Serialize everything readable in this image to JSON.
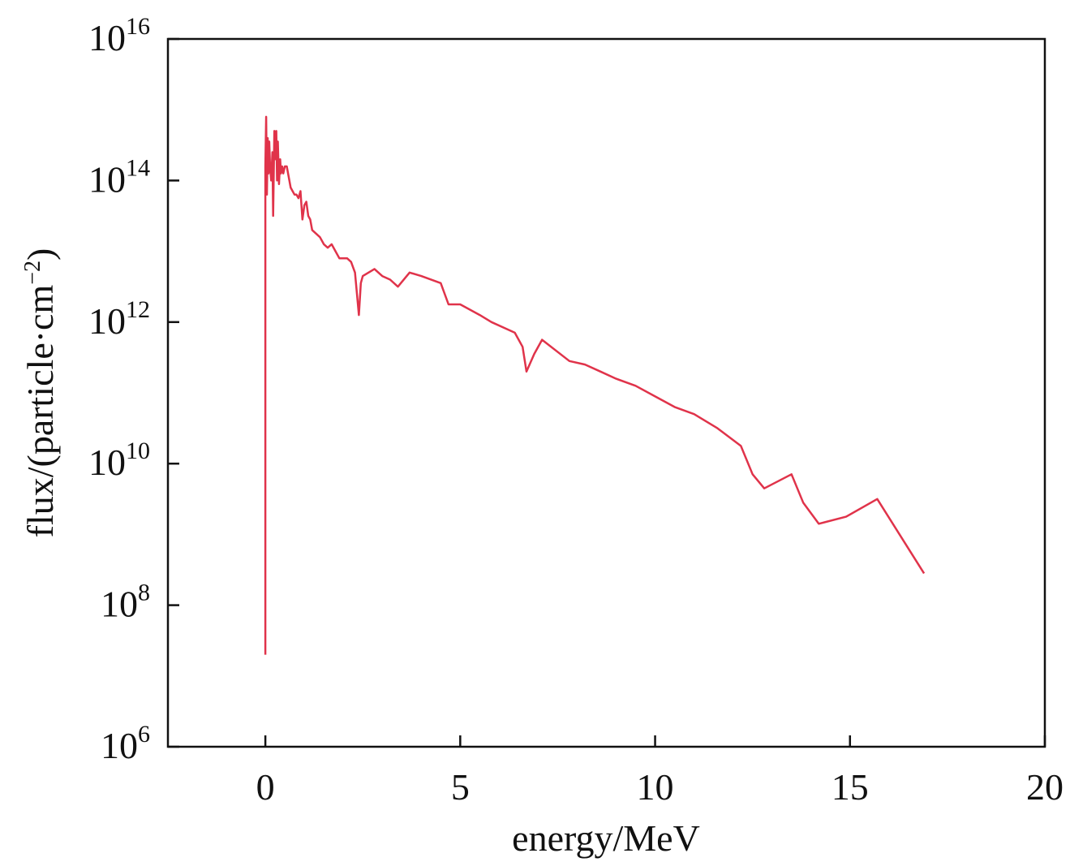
{
  "chart_data": {
    "type": "line",
    "title": "",
    "xlabel": "energy/MeV",
    "ylabel": {
      "text": "flux/(particle·cm",
      "superscript": "−2",
      "suffix": ")"
    },
    "xlim": [
      -2.5,
      20
    ],
    "ylim_log10": [
      6,
      16
    ],
    "y_scale": "log",
    "grid": false,
    "legend": "none",
    "x_ticks": [
      {
        "value": 0,
        "label": "0"
      },
      {
        "value": 5,
        "label": "5"
      },
      {
        "value": 10,
        "label": "10"
      },
      {
        "value": 15,
        "label": "15"
      },
      {
        "value": 20,
        "label": "20"
      }
    ],
    "y_ticks": [
      {
        "exponent": 6,
        "base": "10",
        "power": "6"
      },
      {
        "exponent": 8,
        "base": "10",
        "power": "8"
      },
      {
        "exponent": 10,
        "base": "10",
        "power": "10"
      },
      {
        "exponent": 12,
        "base": "10",
        "power": "12"
      },
      {
        "exponent": 14,
        "base": "10",
        "power": "14"
      },
      {
        "exponent": 16,
        "base": "10",
        "power": "16"
      }
    ],
    "series": [
      {
        "color": "#e0334a",
        "x": [
          0.0,
          0.0,
          0.02,
          0.04,
          0.06,
          0.08,
          0.1,
          0.12,
          0.15,
          0.18,
          0.2,
          0.23,
          0.26,
          0.28,
          0.3,
          0.32,
          0.35,
          0.38,
          0.4,
          0.43,
          0.46,
          0.5,
          0.55,
          0.6,
          0.65,
          0.7,
          0.75,
          0.8,
          0.85,
          0.9,
          0.95,
          1.0,
          1.05,
          1.1,
          1.15,
          1.2,
          1.3,
          1.4,
          1.5,
          1.6,
          1.7,
          1.8,
          1.9,
          2.0,
          2.1,
          2.2,
          2.3,
          2.35,
          2.4,
          2.45,
          2.5,
          2.8,
          3.0,
          3.2,
          3.4,
          3.7,
          4.0,
          4.5,
          4.7,
          5.0,
          5.5,
          5.8,
          6.2,
          6.4,
          6.6,
          6.7,
          6.9,
          7.1,
          7.8,
          8.2,
          8.6,
          9.0,
          9.5,
          10.0,
          10.5,
          11.0,
          11.6,
          12.2,
          12.5,
          12.8,
          13.5,
          13.8,
          14.2,
          14.9,
          15.7,
          16.5,
          16.9
        ],
        "y_log10": [
          7.3,
          14.2,
          14.9,
          13.8,
          14.6,
          14.1,
          14.55,
          14.2,
          14.0,
          14.4,
          13.5,
          14.7,
          14.3,
          14.7,
          14.0,
          14.55,
          13.95,
          14.3,
          14.1,
          14.2,
          14.1,
          14.2,
          14.2,
          14.05,
          13.9,
          13.85,
          13.8,
          13.8,
          13.75,
          13.85,
          13.45,
          13.65,
          13.7,
          13.5,
          13.45,
          13.3,
          13.25,
          13.2,
          13.1,
          13.05,
          13.1,
          13.0,
          12.9,
          12.9,
          12.9,
          12.85,
          12.7,
          12.4,
          12.1,
          12.55,
          12.65,
          12.75,
          12.65,
          12.6,
          12.5,
          12.7,
          12.65,
          12.55,
          12.25,
          12.25,
          12.1,
          12.0,
          11.9,
          11.85,
          11.65,
          11.3,
          11.55,
          11.75,
          11.45,
          11.4,
          11.3,
          11.2,
          11.1,
          10.95,
          10.8,
          10.7,
          10.5,
          10.25,
          9.85,
          9.65,
          9.85,
          9.45,
          9.15,
          9.25,
          9.5,
          8.8,
          8.45
        ]
      }
    ]
  }
}
